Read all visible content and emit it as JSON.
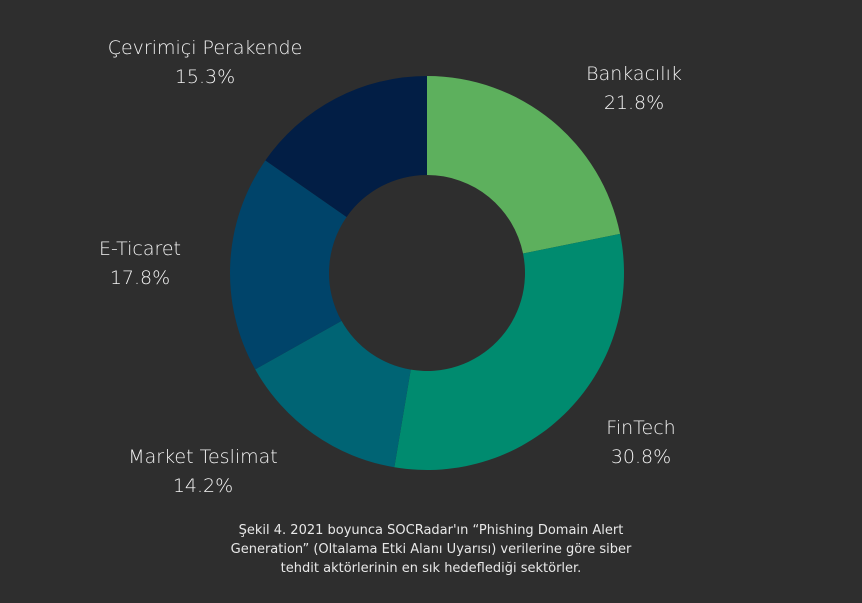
{
  "chart_data": {
    "type": "pie",
    "variant": "donut",
    "categories": [
      "Bankacılık",
      "FinTech",
      "Market Teslimat",
      "E-Ticaret",
      "Çevrimiçi Perakende"
    ],
    "values": [
      21.8,
      30.8,
      14.2,
      17.8,
      15.3
    ],
    "value_labels": [
      "21.8%",
      "30.8%",
      "14.2%",
      "17.8%",
      "15.3%"
    ],
    "colors": [
      "#5db05d",
      "#008b6f",
      "#006474",
      "#00446a",
      "#021e45"
    ],
    "start_angle_deg": 0,
    "direction": "clockwise",
    "title": "",
    "legend": "none"
  },
  "caption": {
    "lines": [
      "Şekil 4. 2021 boyunca SOCRadar'ın “Phishing Domain Alert",
      "Generation” (Oltalama Etki Alanı Uyarısı) verilerine göre siber",
      "tehdit aktörlerinin en sık hedeflediği sektörler."
    ]
  },
  "theme": {
    "background": "#2e2e2e",
    "text": "#f2f2f2"
  }
}
